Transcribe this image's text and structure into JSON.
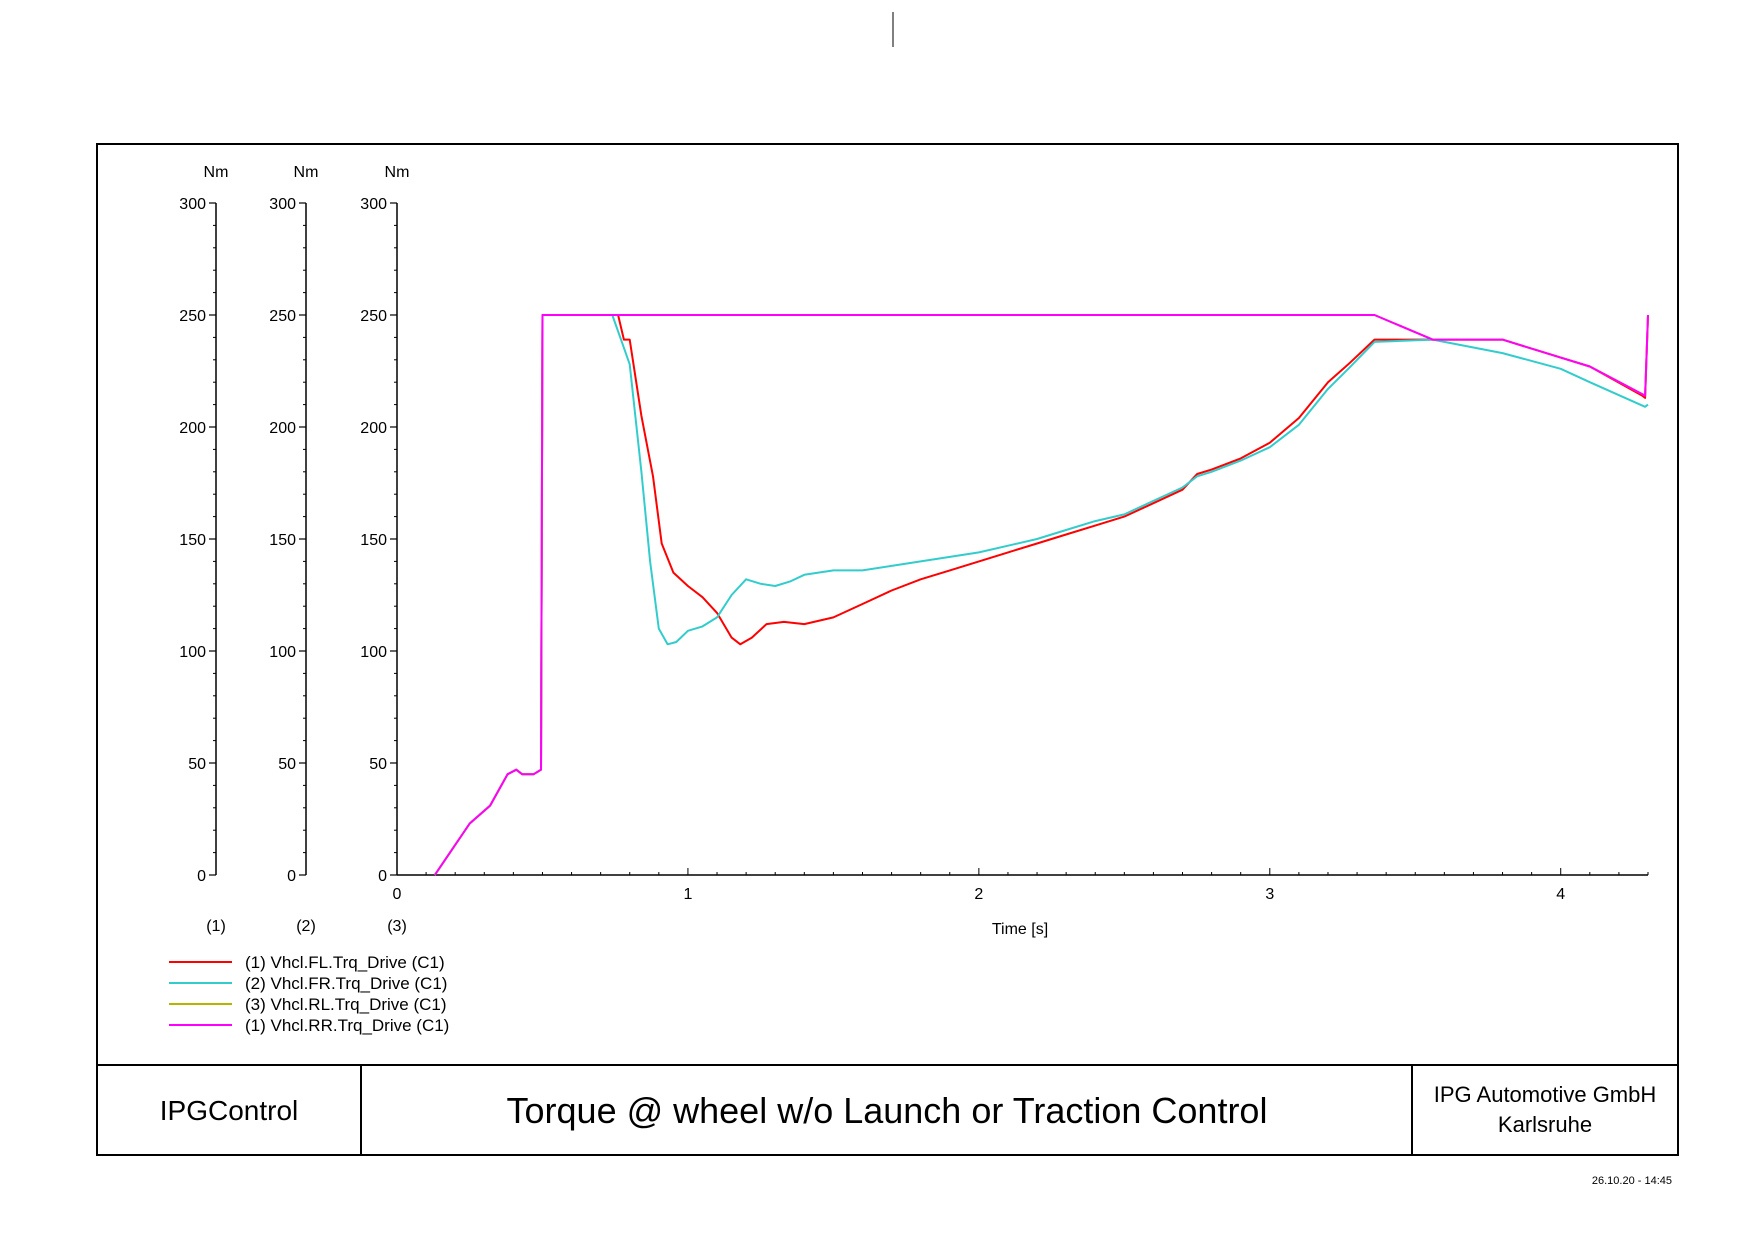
{
  "footer": {
    "app_name": "IPGControl",
    "title": "Torque @ wheel w/o Launch or Traction Control",
    "company_line1": "IPG Automotive GmbH",
    "company_line2": "Karlsruhe",
    "timestamp": "26.10.20 - 14:45"
  },
  "chart_data": {
    "type": "line",
    "title": "Torque @ wheel w/o Launch or Traction Control",
    "xlabel": "Time [s]",
    "xlim": [
      0,
      4.3
    ],
    "x_ticks": [
      0,
      1,
      2,
      3,
      4
    ],
    "grid": false,
    "legend_position": "bottom-left",
    "y_axes": [
      {
        "index_label": "(1)",
        "unit": "Nm",
        "ylim": [
          0,
          300
        ],
        "ticks": [
          0,
          50,
          100,
          150,
          200,
          250,
          300
        ]
      },
      {
        "index_label": "(2)",
        "unit": "Nm",
        "ylim": [
          0,
          300
        ],
        "ticks": [
          0,
          50,
          100,
          150,
          200,
          250,
          300
        ]
      },
      {
        "index_label": "(3)",
        "unit": "Nm",
        "ylim": [
          0,
          300
        ],
        "ticks": [
          0,
          50,
          100,
          150,
          200,
          250,
          300
        ]
      }
    ],
    "series": [
      {
        "name": "(1) Vhcl.FL.Trq_Drive (C1)",
        "color": "#ff0000",
        "points": [
          [
            0.13,
            0
          ],
          [
            0.25,
            23
          ],
          [
            0.32,
            31
          ],
          [
            0.38,
            45
          ],
          [
            0.41,
            47
          ],
          [
            0.43,
            45
          ],
          [
            0.47,
            45
          ],
          [
            0.495,
            47
          ],
          [
            0.5,
            250
          ],
          [
            0.76,
            250
          ],
          [
            0.78,
            239
          ],
          [
            0.8,
            239
          ],
          [
            0.84,
            205
          ],
          [
            0.88,
            178
          ],
          [
            0.91,
            148
          ],
          [
            0.95,
            135
          ],
          [
            1.0,
            129
          ],
          [
            1.05,
            124
          ],
          [
            1.1,
            117
          ],
          [
            1.15,
            106
          ],
          [
            1.18,
            103
          ],
          [
            1.22,
            106
          ],
          [
            1.27,
            112
          ],
          [
            1.33,
            113
          ],
          [
            1.4,
            112
          ],
          [
            1.5,
            115
          ],
          [
            1.6,
            121
          ],
          [
            1.7,
            127
          ],
          [
            1.8,
            132
          ],
          [
            1.9,
            136
          ],
          [
            2.0,
            140
          ],
          [
            2.1,
            144
          ],
          [
            2.2,
            148
          ],
          [
            2.3,
            152
          ],
          [
            2.4,
            156
          ],
          [
            2.5,
            160
          ],
          [
            2.6,
            166
          ],
          [
            2.7,
            172
          ],
          [
            2.75,
            179
          ],
          [
            2.8,
            181
          ],
          [
            2.9,
            186
          ],
          [
            3.0,
            193
          ],
          [
            3.1,
            204
          ],
          [
            3.2,
            220
          ],
          [
            3.27,
            228
          ],
          [
            3.36,
            239
          ],
          [
            3.56,
            239
          ],
          [
            3.8,
            239
          ],
          [
            4.0,
            231
          ],
          [
            4.1,
            227
          ],
          [
            4.28,
            214
          ],
          [
            4.29,
            213
          ],
          [
            4.3,
            250
          ]
        ]
      },
      {
        "name": "(2) Vhcl.FR.Trq_Drive (C1)",
        "color": "#33cccc",
        "points": [
          [
            0.13,
            0
          ],
          [
            0.25,
            23
          ],
          [
            0.32,
            31
          ],
          [
            0.38,
            45
          ],
          [
            0.41,
            47
          ],
          [
            0.43,
            45
          ],
          [
            0.47,
            45
          ],
          [
            0.495,
            47
          ],
          [
            0.5,
            250
          ],
          [
            0.74,
            250
          ],
          [
            0.77,
            239
          ],
          [
            0.8,
            228
          ],
          [
            0.84,
            180
          ],
          [
            0.87,
            140
          ],
          [
            0.9,
            110
          ],
          [
            0.93,
            103
          ],
          [
            0.96,
            104
          ],
          [
            1.0,
            109
          ],
          [
            1.05,
            111
          ],
          [
            1.1,
            115
          ],
          [
            1.15,
            125
          ],
          [
            1.2,
            132
          ],
          [
            1.25,
            130
          ],
          [
            1.3,
            129
          ],
          [
            1.35,
            131
          ],
          [
            1.4,
            134
          ],
          [
            1.5,
            136
          ],
          [
            1.6,
            136
          ],
          [
            1.7,
            138
          ],
          [
            1.8,
            140
          ],
          [
            1.9,
            142
          ],
          [
            2.0,
            144
          ],
          [
            2.1,
            147
          ],
          [
            2.2,
            150
          ],
          [
            2.3,
            154
          ],
          [
            2.4,
            158
          ],
          [
            2.5,
            161
          ],
          [
            2.6,
            167
          ],
          [
            2.7,
            173
          ],
          [
            2.75,
            178
          ],
          [
            2.8,
            180
          ],
          [
            2.9,
            185
          ],
          [
            3.0,
            191
          ],
          [
            3.1,
            201
          ],
          [
            3.2,
            217
          ],
          [
            3.27,
            226
          ],
          [
            3.36,
            238
          ],
          [
            3.56,
            239
          ],
          [
            3.8,
            233
          ],
          [
            4.0,
            226
          ],
          [
            4.1,
            220
          ],
          [
            4.29,
            209
          ],
          [
            4.3,
            210
          ]
        ]
      },
      {
        "name": "(3) Vhcl.RL.Trq_Drive (C1)",
        "color": "#b5b500",
        "points": [
          [
            0.13,
            0
          ],
          [
            0.25,
            23
          ],
          [
            0.32,
            31
          ],
          [
            0.38,
            45
          ],
          [
            0.41,
            47
          ],
          [
            0.43,
            45
          ],
          [
            0.47,
            45
          ],
          [
            0.495,
            47
          ],
          [
            0.5,
            250
          ],
          [
            3.36,
            250
          ],
          [
            3.56,
            239
          ],
          [
            3.8,
            239
          ],
          [
            4.0,
            231
          ],
          [
            4.1,
            227
          ],
          [
            4.29,
            214
          ],
          [
            4.3,
            250
          ]
        ]
      },
      {
        "name": "(1) Vhcl.RR.Trq_Drive (C1)",
        "color": "#ff00ff",
        "points": [
          [
            0.13,
            0
          ],
          [
            0.25,
            23
          ],
          [
            0.32,
            31
          ],
          [
            0.38,
            45
          ],
          [
            0.41,
            47
          ],
          [
            0.43,
            45
          ],
          [
            0.47,
            45
          ],
          [
            0.495,
            47
          ],
          [
            0.5,
            250
          ],
          [
            3.36,
            250
          ],
          [
            3.56,
            239
          ],
          [
            3.8,
            239
          ],
          [
            4.0,
            231
          ],
          [
            4.1,
            227
          ],
          [
            4.29,
            214
          ],
          [
            4.3,
            250
          ]
        ]
      }
    ]
  }
}
